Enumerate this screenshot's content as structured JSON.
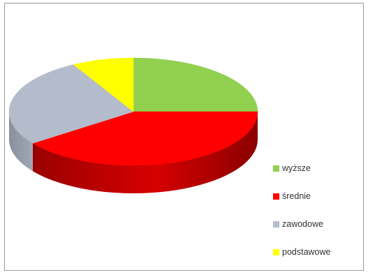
{
  "chart_data": {
    "type": "pie",
    "style": "3d",
    "labels": [
      "wyższe",
      "średnie",
      "zawodowe",
      "podstawowe"
    ],
    "values": [
      25,
      40,
      27,
      8
    ],
    "colors": [
      "#92d050",
      "#ff0000",
      "#b4bccc",
      "#ffff00"
    ],
    "legend": "right"
  }
}
